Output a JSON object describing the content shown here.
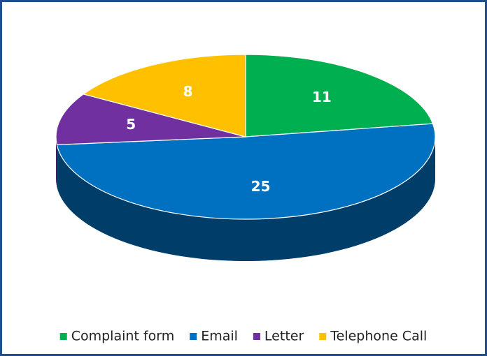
{
  "chart_data": {
    "type": "pie3d",
    "categories": [
      "Complaint form",
      "Email",
      "Letter",
      "Telephone Call"
    ],
    "values": [
      11,
      25,
      5,
      8
    ],
    "colors": [
      "#00b050",
      "#0070c0",
      "#7030a0",
      "#ffc000"
    ],
    "legend": "bottom"
  }
}
